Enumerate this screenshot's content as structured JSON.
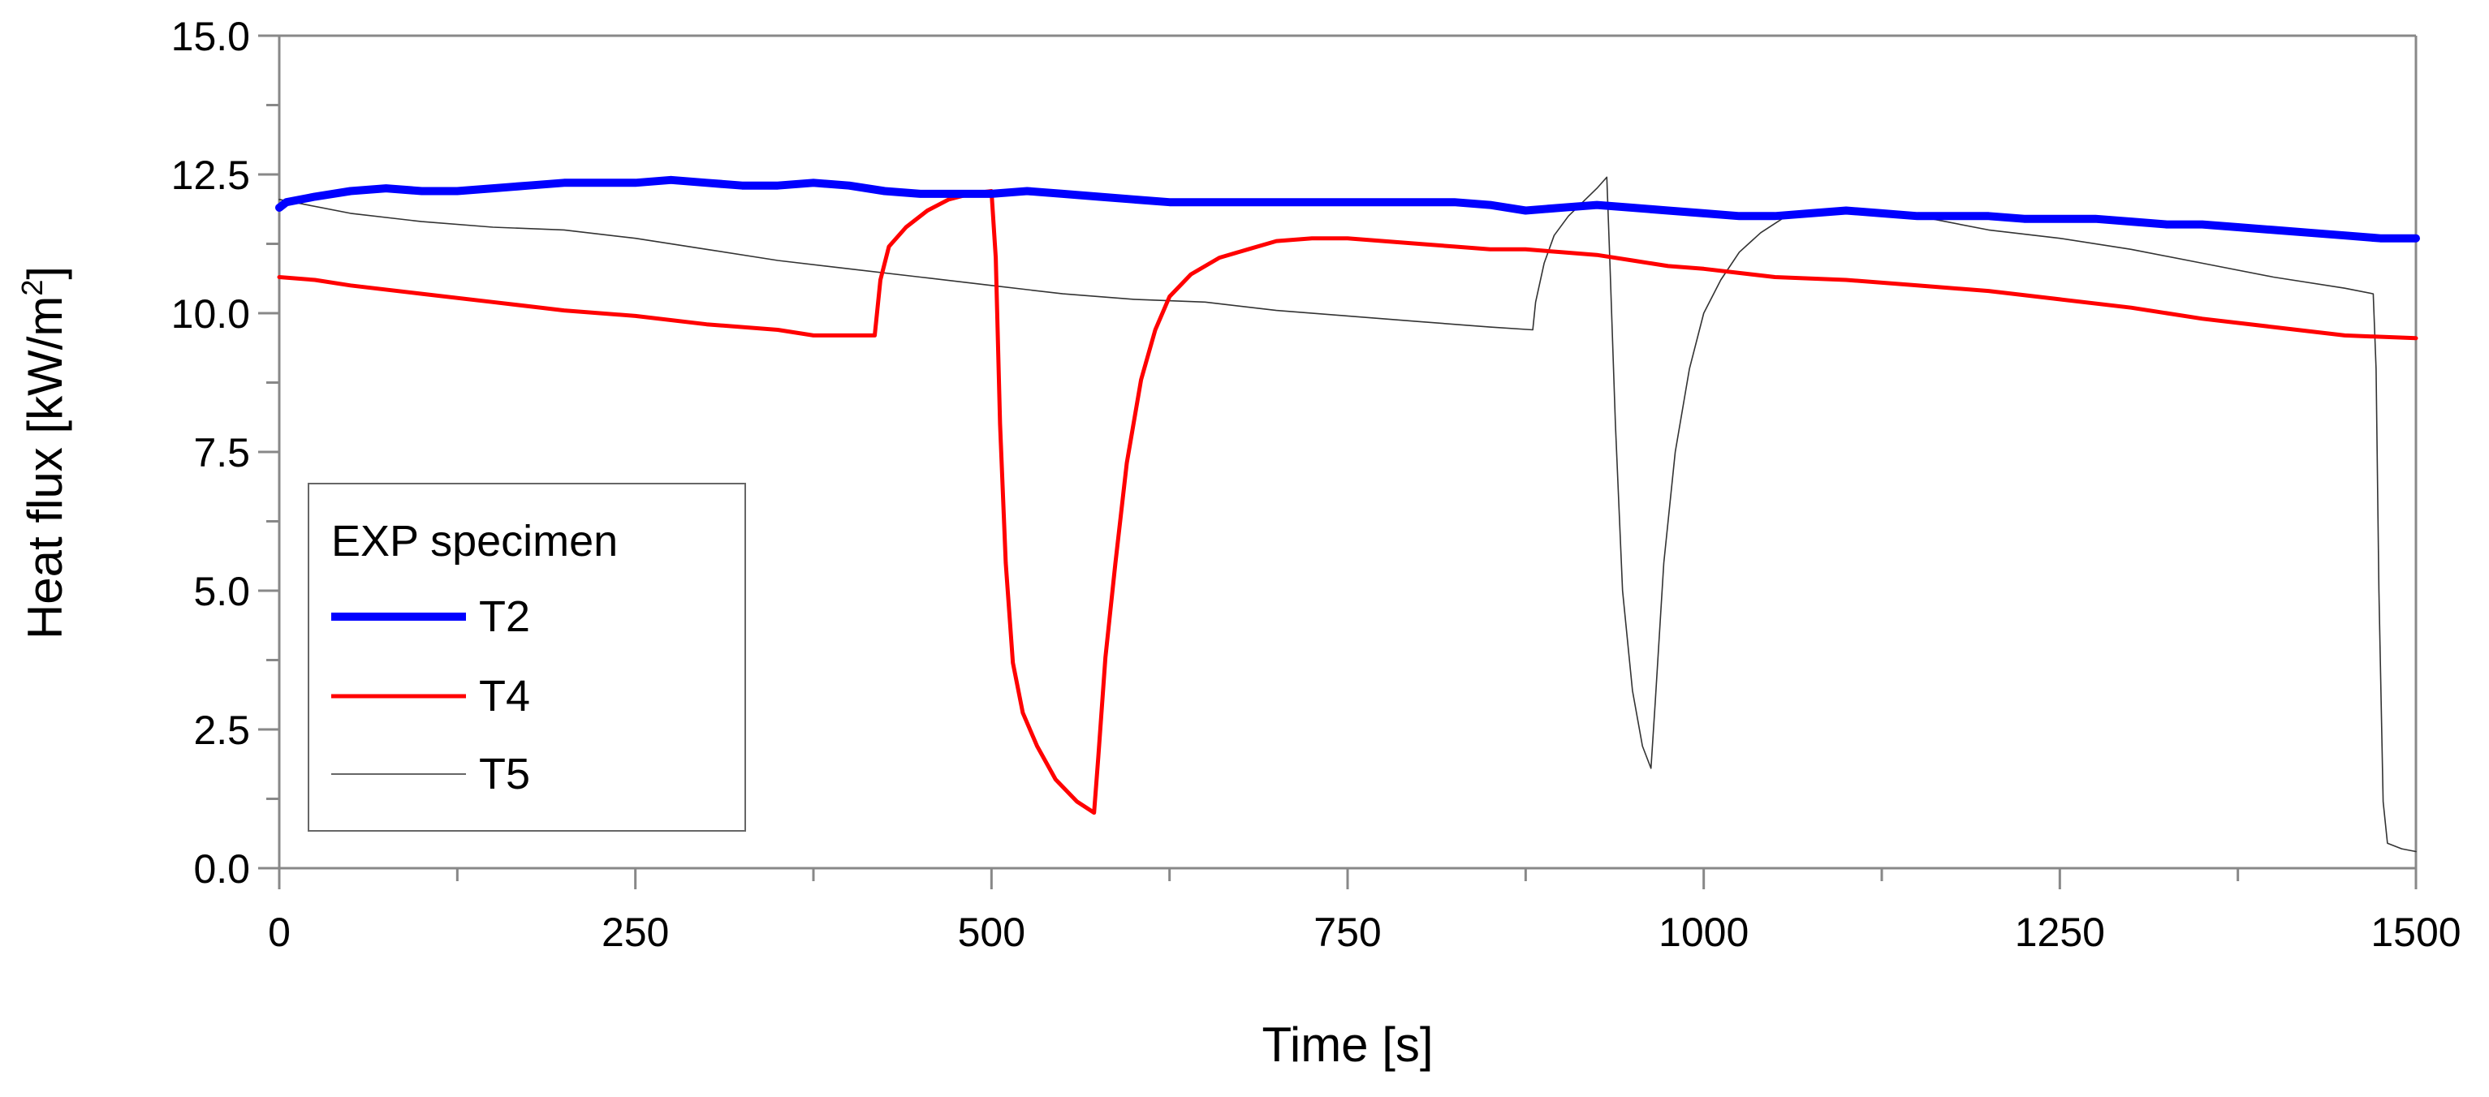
{
  "chart_data": {
    "type": "line",
    "title": "",
    "xlabel": "Time  [s]",
    "ylabel_main": "Heat flux  [kW/m",
    "ylabel_sup": "2",
    "ylabel_close": "]",
    "xlim": [
      0,
      1500
    ],
    "ylim": [
      0,
      15
    ],
    "x_ticks": [
      0,
      250,
      500,
      750,
      1000,
      1250,
      1500
    ],
    "x_tick_labels": [
      "0",
      "250",
      "500",
      "750",
      "1000",
      "1250",
      "1500"
    ],
    "x_minor_ticks": [
      125,
      375,
      625,
      875,
      1125,
      1375
    ],
    "y_ticks": [
      0,
      2.5,
      5,
      7.5,
      10,
      12.5,
      15
    ],
    "y_tick_labels": [
      "0.0",
      "2.5",
      "5.0",
      "7.5",
      "10.0",
      "12.5",
      "15.0"
    ],
    "y_minor_ticks": [
      1.25,
      3.75,
      6.25,
      8.75,
      11.25,
      13.75
    ],
    "grid": false,
    "legend": {
      "title": "EXP specimen",
      "position": "bottom-left"
    },
    "series": [
      {
        "name": "T2",
        "color": "#0000ff",
        "width": "thick",
        "points": [
          [
            0,
            11.9
          ],
          [
            5,
            12.0
          ],
          [
            25,
            12.1
          ],
          [
            50,
            12.2
          ],
          [
            75,
            12.25
          ],
          [
            100,
            12.2
          ],
          [
            125,
            12.2
          ],
          [
            150,
            12.25
          ],
          [
            175,
            12.3
          ],
          [
            200,
            12.35
          ],
          [
            250,
            12.35
          ],
          [
            275,
            12.4
          ],
          [
            300,
            12.35
          ],
          [
            325,
            12.3
          ],
          [
            350,
            12.3
          ],
          [
            375,
            12.35
          ],
          [
            400,
            12.3
          ],
          [
            425,
            12.2
          ],
          [
            450,
            12.15
          ],
          [
            475,
            12.15
          ],
          [
            500,
            12.15
          ],
          [
            525,
            12.2
          ],
          [
            550,
            12.15
          ],
          [
            575,
            12.1
          ],
          [
            600,
            12.05
          ],
          [
            625,
            12.0
          ],
          [
            650,
            12.0
          ],
          [
            675,
            12.0
          ],
          [
            700,
            12.0
          ],
          [
            725,
            12.0
          ],
          [
            750,
            12.0
          ],
          [
            775,
            12.0
          ],
          [
            800,
            12.0
          ],
          [
            825,
            12.0
          ],
          [
            850,
            11.95
          ],
          [
            875,
            11.85
          ],
          [
            900,
            11.9
          ],
          [
            925,
            11.95
          ],
          [
            950,
            11.9
          ],
          [
            975,
            11.85
          ],
          [
            1000,
            11.8
          ],
          [
            1025,
            11.75
          ],
          [
            1050,
            11.75
          ],
          [
            1075,
            11.8
          ],
          [
            1100,
            11.85
          ],
          [
            1125,
            11.8
          ],
          [
            1150,
            11.75
          ],
          [
            1175,
            11.75
          ],
          [
            1200,
            11.75
          ],
          [
            1225,
            11.7
          ],
          [
            1250,
            11.7
          ],
          [
            1275,
            11.7
          ],
          [
            1300,
            11.65
          ],
          [
            1325,
            11.6
          ],
          [
            1350,
            11.6
          ],
          [
            1375,
            11.55
          ],
          [
            1400,
            11.5
          ],
          [
            1425,
            11.45
          ],
          [
            1450,
            11.4
          ],
          [
            1475,
            11.35
          ],
          [
            1500,
            11.35
          ]
        ]
      },
      {
        "name": "T4",
        "color": "#ff0000",
        "width": "medium",
        "points": [
          [
            0,
            10.65
          ],
          [
            25,
            10.6
          ],
          [
            50,
            10.5
          ],
          [
            100,
            10.35
          ],
          [
            150,
            10.2
          ],
          [
            200,
            10.05
          ],
          [
            250,
            9.95
          ],
          [
            300,
            9.8
          ],
          [
            350,
            9.7
          ],
          [
            375,
            9.6
          ],
          [
            400,
            9.6
          ],
          [
            418,
            9.6
          ],
          [
            422,
            10.6
          ],
          [
            428,
            11.2
          ],
          [
            440,
            11.55
          ],
          [
            455,
            11.85
          ],
          [
            470,
            12.05
          ],
          [
            485,
            12.15
          ],
          [
            500,
            12.2
          ],
          [
            503,
            11.0
          ],
          [
            506,
            8.0
          ],
          [
            510,
            5.5
          ],
          [
            515,
            3.7
          ],
          [
            522,
            2.8
          ],
          [
            532,
            2.2
          ],
          [
            545,
            1.6
          ],
          [
            560,
            1.2
          ],
          [
            572,
            1.0
          ],
          [
            575,
            2.0
          ],
          [
            580,
            3.8
          ],
          [
            587,
            5.5
          ],
          [
            595,
            7.3
          ],
          [
            605,
            8.8
          ],
          [
            615,
            9.7
          ],
          [
            625,
            10.3
          ],
          [
            640,
            10.7
          ],
          [
            660,
            11.0
          ],
          [
            680,
            11.15
          ],
          [
            700,
            11.3
          ],
          [
            725,
            11.35
          ],
          [
            750,
            11.35
          ],
          [
            775,
            11.3
          ],
          [
            800,
            11.25
          ],
          [
            825,
            11.2
          ],
          [
            850,
            11.15
          ],
          [
            875,
            11.15
          ],
          [
            900,
            11.1
          ],
          [
            925,
            11.05
          ],
          [
            950,
            10.95
          ],
          [
            975,
            10.85
          ],
          [
            1000,
            10.8
          ],
          [
            1050,
            10.65
          ],
          [
            1100,
            10.6
          ],
          [
            1150,
            10.5
          ],
          [
            1200,
            10.4
          ],
          [
            1250,
            10.25
          ],
          [
            1300,
            10.1
          ],
          [
            1350,
            9.9
          ],
          [
            1400,
            9.75
          ],
          [
            1450,
            9.6
          ],
          [
            1500,
            9.55
          ]
        ]
      },
      {
        "name": "T5",
        "color": "#333333",
        "width": "thin",
        "points": [
          [
            0,
            12.05
          ],
          [
            10,
            12.0
          ],
          [
            50,
            11.8
          ],
          [
            100,
            11.65
          ],
          [
            150,
            11.55
          ],
          [
            200,
            11.5
          ],
          [
            250,
            11.35
          ],
          [
            300,
            11.15
          ],
          [
            350,
            10.95
          ],
          [
            400,
            10.8
          ],
          [
            450,
            10.65
          ],
          [
            500,
            10.5
          ],
          [
            550,
            10.35
          ],
          [
            600,
            10.25
          ],
          [
            650,
            10.2
          ],
          [
            700,
            10.05
          ],
          [
            750,
            9.95
          ],
          [
            800,
            9.85
          ],
          [
            850,
            9.75
          ],
          [
            880,
            9.7
          ],
          [
            882,
            10.2
          ],
          [
            888,
            10.9
          ],
          [
            895,
            11.4
          ],
          [
            905,
            11.75
          ],
          [
            915,
            12.0
          ],
          [
            925,
            12.25
          ],
          [
            932,
            12.45
          ],
          [
            934,
            11.0
          ],
          [
            938,
            8.0
          ],
          [
            943,
            5.0
          ],
          [
            950,
            3.2
          ],
          [
            957,
            2.2
          ],
          [
            963,
            1.8
          ],
          [
            966,
            3.0
          ],
          [
            972,
            5.5
          ],
          [
            980,
            7.5
          ],
          [
            990,
            9.0
          ],
          [
            1000,
            10.0
          ],
          [
            1012,
            10.6
          ],
          [
            1025,
            11.1
          ],
          [
            1040,
            11.45
          ],
          [
            1055,
            11.7
          ],
          [
            1075,
            11.85
          ],
          [
            1100,
            11.9
          ],
          [
            1150,
            11.75
          ],
          [
            1200,
            11.5
          ],
          [
            1250,
            11.35
          ],
          [
            1300,
            11.15
          ],
          [
            1350,
            10.9
          ],
          [
            1400,
            10.65
          ],
          [
            1450,
            10.45
          ],
          [
            1470,
            10.35
          ],
          [
            1472,
            9.0
          ],
          [
            1474,
            5.0
          ],
          [
            1477,
            1.2
          ],
          [
            1480,
            0.45
          ],
          [
            1490,
            0.35
          ],
          [
            1500,
            0.3
          ]
        ]
      }
    ]
  }
}
